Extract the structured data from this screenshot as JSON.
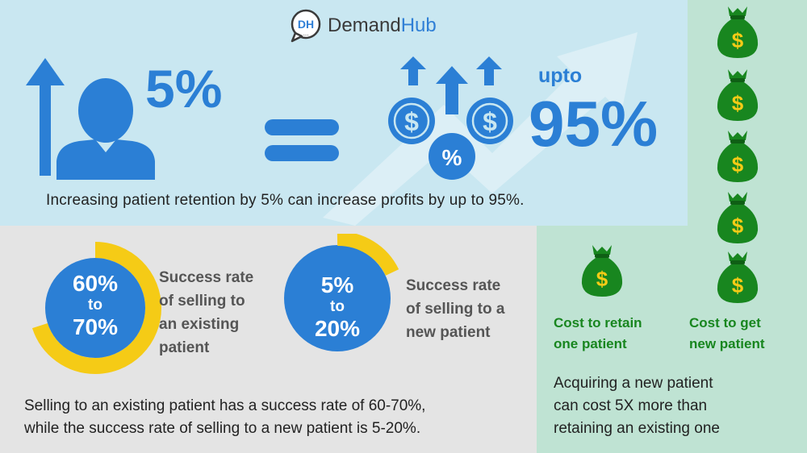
{
  "brand": {
    "logo_mark": "DH",
    "name_part1": "Demand",
    "name_part2": "Hub"
  },
  "retention": {
    "percent": "5%",
    "upto": "upto",
    "profit_percent": "95%",
    "caption": "Increasing patient retention by 5% can increase profits by up to 95%.",
    "coin_symbol": "$",
    "percent_coin_symbol": "%"
  },
  "existing": {
    "range_low": "60%",
    "to": "to",
    "range_high": "70%",
    "label_lines": [
      "Success rate",
      "of selling to",
      "an existing",
      "patient"
    ],
    "ring_fraction": 0.7
  },
  "new_patient": {
    "range_low": "5%",
    "to": "to",
    "range_high": "20%",
    "label_lines": [
      "Success rate",
      "of selling to a",
      "new patient"
    ],
    "ring_fraction": 0.2
  },
  "comparison": {
    "caption_lines": [
      "Selling to an existing patient has a success rate of 60-70%,",
      "while the success rate of selling to a new patient is 5-20%."
    ]
  },
  "cost": {
    "retain_label_lines": [
      "Cost to retain",
      "one patient"
    ],
    "get_label_lines": [
      "Cost to get",
      "new patient"
    ],
    "retain_bag_count": 1,
    "get_bag_count": 5,
    "bag_symbol": "$",
    "caption_lines": [
      "Acquiring a new patient",
      "can cost 5X more than",
      "retaining an existing one"
    ]
  },
  "colors": {
    "blue": "#2b7fd5",
    "yellow": "#f5cb16",
    "green": "#18861f",
    "light_blue": "#c9e7f1",
    "mint": "#bfe3d3"
  }
}
